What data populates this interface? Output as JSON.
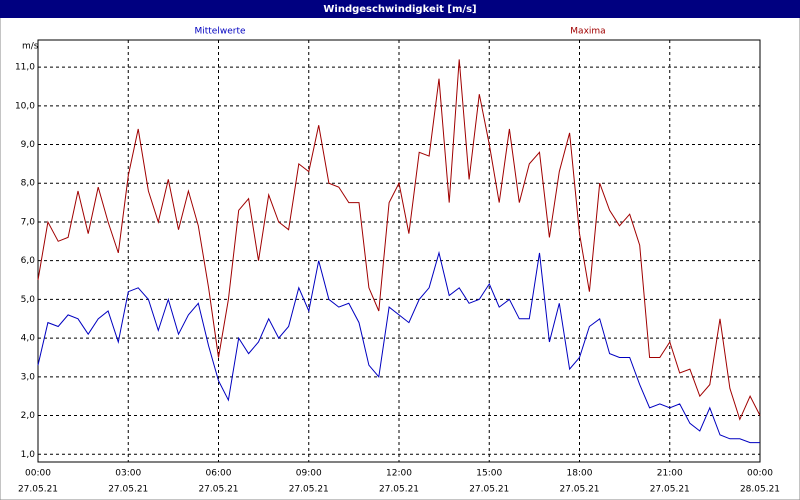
{
  "chart_data": {
    "type": "line",
    "title": "Windgeschwindigkeit [m/s]",
    "y_unit": "m/s",
    "x": [
      0,
      0.33,
      0.67,
      1,
      1.33,
      1.67,
      2,
      2.33,
      2.67,
      3,
      3.33,
      3.67,
      4,
      4.33,
      4.67,
      5,
      5.33,
      5.67,
      6,
      6.33,
      6.67,
      7,
      7.33,
      7.67,
      8,
      8.33,
      8.67,
      9,
      9.33,
      9.67,
      10,
      10.33,
      10.67,
      11,
      11.33,
      11.67,
      12,
      12.33,
      12.67,
      13,
      13.33,
      13.67,
      14,
      14.33,
      14.67,
      15,
      15.33,
      15.67,
      16,
      16.33,
      16.67,
      17,
      17.33,
      17.67,
      18,
      18.33,
      18.67,
      19,
      19.33,
      19.67,
      20,
      20.33,
      20.67,
      21,
      21.33,
      21.67,
      22,
      22.33,
      22.67,
      23,
      23.33,
      23.67,
      24
    ],
    "series": [
      {
        "name": "Mittelwerte",
        "color": "#0000c0",
        "values": [
          3.3,
          4.4,
          4.3,
          4.6,
          4.5,
          4.1,
          4.5,
          4.7,
          3.9,
          5.2,
          5.3,
          5.0,
          4.2,
          5.0,
          4.1,
          4.6,
          4.9,
          3.8,
          2.9,
          2.4,
          4.0,
          3.6,
          3.9,
          4.5,
          4.0,
          4.3,
          5.3,
          4.7,
          6.0,
          5.0,
          4.8,
          4.9,
          4.4,
          3.3,
          3.0,
          4.8,
          4.6,
          4.4,
          5.0,
          5.3,
          6.2,
          5.1,
          5.3,
          4.9,
          5.0,
          5.4,
          4.8,
          5.0,
          4.5,
          4.5,
          6.2,
          3.9,
          4.9,
          3.2,
          3.5,
          4.3,
          4.5,
          3.6,
          3.5,
          3.5,
          2.8,
          2.2,
          2.3,
          2.2,
          2.3,
          1.8,
          1.6,
          2.2,
          1.5,
          1.4,
          1.4,
          1.3,
          1.3
        ]
      },
      {
        "name": "Maxima",
        "color": "#a00000",
        "values": [
          5.5,
          7.0,
          6.5,
          6.6,
          7.8,
          6.7,
          7.9,
          7.0,
          6.2,
          8.2,
          9.4,
          7.8,
          7.0,
          8.1,
          6.8,
          7.8,
          6.9,
          5.3,
          3.5,
          5.0,
          7.3,
          7.6,
          6.0,
          7.7,
          7.0,
          6.8,
          8.5,
          8.3,
          9.5,
          8.0,
          7.9,
          7.5,
          7.5,
          5.3,
          4.7,
          7.5,
          8.0,
          6.7,
          8.8,
          8.7,
          10.7,
          7.5,
          11.2,
          8.1,
          10.3,
          9.0,
          7.5,
          9.4,
          7.5,
          8.5,
          8.8,
          6.6,
          8.3,
          9.3,
          6.7,
          5.2,
          8.0,
          7.3,
          6.9,
          7.2,
          6.4,
          3.5,
          3.5,
          3.9,
          3.1,
          3.2,
          2.5,
          2.8,
          4.5,
          2.7,
          1.9,
          2.5,
          2.0
        ]
      }
    ],
    "xlim": [
      0,
      24
    ],
    "xticks": [
      {
        "value": 0,
        "label": "00:00"
      },
      {
        "value": 3,
        "label": "03:00"
      },
      {
        "value": 6,
        "label": "06:00"
      },
      {
        "value": 9,
        "label": "09:00"
      },
      {
        "value": 12,
        "label": "12:00"
      },
      {
        "value": 15,
        "label": "15:00"
      },
      {
        "value": 18,
        "label": "18:00"
      },
      {
        "value": 21,
        "label": "21:00"
      },
      {
        "value": 24,
        "label": "00:00"
      }
    ],
    "xtick_dates": [
      "27.05.21",
      "27.05.21",
      "27.05.21",
      "27.05.21",
      "27.05.21",
      "27.05.21",
      "27.05.21",
      "27.05.21",
      "28.05.21"
    ],
    "ylim": [
      0.8,
      11.7
    ],
    "yticks": [
      {
        "value": 1,
        "label": "1,0"
      },
      {
        "value": 2,
        "label": "2,0"
      },
      {
        "value": 3,
        "label": "3,0"
      },
      {
        "value": 4,
        "label": "4,0"
      },
      {
        "value": 5,
        "label": "5,0"
      },
      {
        "value": 6,
        "label": "6,0"
      },
      {
        "value": 7,
        "label": "7,0"
      },
      {
        "value": 8,
        "label": "8,0"
      },
      {
        "value": 9,
        "label": "9,0"
      },
      {
        "value": 10,
        "label": "10,0"
      },
      {
        "value": 11,
        "label": "11,0"
      }
    ],
    "grid": true
  }
}
